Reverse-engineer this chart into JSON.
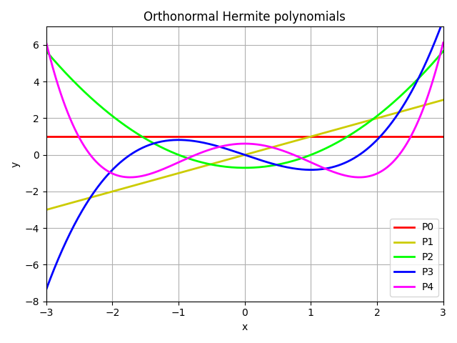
{
  "title": "Orthonormal Hermite polynomials",
  "xlabel": "x",
  "ylabel": "y",
  "xlim": [
    -3,
    3
  ],
  "ylim": [
    -8,
    7
  ],
  "x_ticks": [
    -3,
    -2,
    -1,
    0,
    1,
    2,
    3
  ],
  "y_ticks": [
    -8,
    -6,
    -4,
    -2,
    0,
    2,
    4,
    6
  ],
  "lines": [
    {
      "label": "P0",
      "color": "red",
      "order": 0
    },
    {
      "label": "P1",
      "color": "#cccc00",
      "order": 1
    },
    {
      "label": "P2",
      "color": "lime",
      "order": 2
    },
    {
      "label": "P3",
      "color": "blue",
      "order": 3
    },
    {
      "label": "P4",
      "color": "magenta",
      "order": 4
    }
  ],
  "linewidth": 2,
  "grid": true,
  "legend_loc": "lower right",
  "figsize": [
    6.4,
    4.8
  ],
  "dpi": 100
}
